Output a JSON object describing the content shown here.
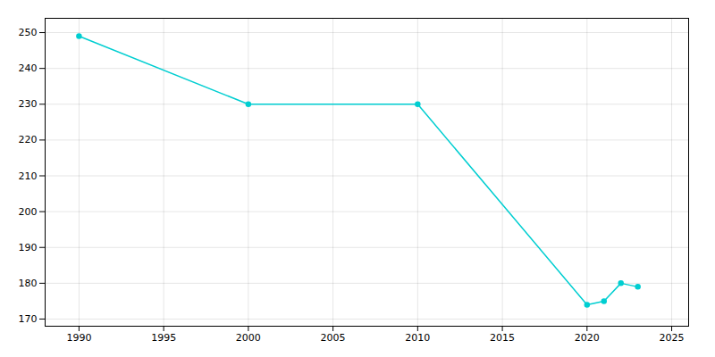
{
  "chart_data": {
    "type": "line",
    "x": [
      1990,
      2000,
      2010,
      2020,
      2021,
      2022,
      2023
    ],
    "values": [
      249,
      230,
      230,
      174,
      175,
      180,
      179
    ],
    "color": "#00CED1",
    "marker": "circle",
    "xlim": [
      1988,
      2026
    ],
    "ylim": [
      168,
      254
    ],
    "xticks": [
      1990,
      1995,
      2000,
      2005,
      2010,
      2015,
      2020,
      2025
    ],
    "yticks": [
      170,
      180,
      190,
      200,
      210,
      220,
      230,
      240,
      250
    ],
    "grid": true
  }
}
